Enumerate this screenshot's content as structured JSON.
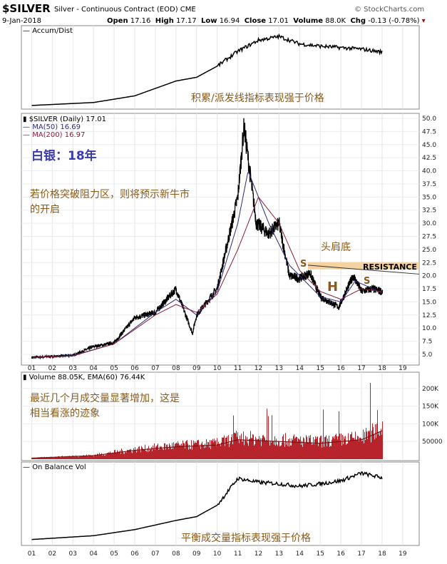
{
  "header": {
    "symbol": "$SILVER",
    "description": "Silver - Continuous Contract (EOD)",
    "exchange": "CME",
    "date": "9-Jan-2018",
    "open_label": "Open",
    "open": "17.16",
    "high_label": "High",
    "high": "17.17",
    "low_label": "Low",
    "low": "16.94",
    "close_label": "Close",
    "close": "17.01",
    "volume_label": "Volume",
    "volume": "88.0K",
    "chg_label": "Chg",
    "chg": "-0.13 (-0.78%)",
    "brand": "© StockCharts.com"
  },
  "panels": {
    "accum": {
      "legend": "Accum/Dist",
      "note": "积累/派发线指标表现强于价格"
    },
    "price": {
      "legend_main": "$SILVER (Daily) 17.01",
      "legend_ma50": "MA(50) 16.69",
      "legend_ma200": "MA(200) 16.97",
      "title_cn": "白银：18年",
      "note_cn_1": "若价格突破阻力区，则将预示新牛市",
      "note_cn_2": "的开启",
      "hs_cn": "头肩底",
      "resistance": "RESISTANCE",
      "s_left": "S",
      "h_mid": "H",
      "s_right": "S"
    },
    "volume": {
      "legend": "Volume 88.05K, EMA(60) 76.44K",
      "note_cn_1": "最近几个月成交量显著增加，这是",
      "note_cn_2": "相当看涨的迹象"
    },
    "obv": {
      "legend": "On Balance Vol",
      "note": "平衡成交量指标表现强于价格"
    }
  },
  "colors": {
    "price": "#000000",
    "ma50": "#2b2b7a",
    "ma200": "#8a1a3a",
    "volume": "#b8242c",
    "resistance": "#f5d3a0"
  },
  "chart_data": {
    "type": "line",
    "x": [
      "01",
      "02",
      "03",
      "04",
      "05",
      "06",
      "07",
      "08",
      "09",
      "10",
      "11",
      "12",
      "13",
      "14",
      "15",
      "16",
      "17",
      "18",
      "19"
    ],
    "price_yticks": [
      5.0,
      7.5,
      10.0,
      12.5,
      15.0,
      17.5,
      20.0,
      22.5,
      25.0,
      27.5,
      30.0,
      32.5,
      35.0,
      37.5,
      40.0,
      42.5,
      45.0,
      47.5,
      50.0
    ],
    "price_ylim": [
      3.5,
      50.0
    ],
    "volume_yticks": [
      "50000",
      "100K",
      "150K",
      "200K"
    ],
    "volume_ylim": [
      0,
      230000
    ],
    "series": [
      {
        "name": "$SILVER (Daily)",
        "points": [
          [
            2001,
            4.4
          ],
          [
            2002,
            4.6
          ],
          [
            2003,
            4.8
          ],
          [
            2004,
            6.5
          ],
          [
            2005,
            7.2
          ],
          [
            2006,
            12.0
          ],
          [
            2007,
            13.0
          ],
          [
            2008,
            17.5
          ],
          [
            2008.8,
            9.0
          ],
          [
            2009,
            12.5
          ],
          [
            2010,
            17.5
          ],
          [
            2011,
            35.0
          ],
          [
            2011.3,
            48.5
          ],
          [
            2011.9,
            30.0
          ],
          [
            2012.5,
            28.0
          ],
          [
            2013,
            30.0
          ],
          [
            2013.5,
            20.0
          ],
          [
            2014,
            19.5
          ],
          [
            2014.5,
            20.5
          ],
          [
            2015,
            16.0
          ],
          [
            2015.9,
            14.0
          ],
          [
            2016.6,
            20.0
          ],
          [
            2017,
            17.0
          ],
          [
            2017.5,
            17.5
          ],
          [
            2018,
            17.01
          ]
        ]
      },
      {
        "name": "MA(50)",
        "points": [
          [
            2001,
            4.4
          ],
          [
            2003,
            4.8
          ],
          [
            2005,
            7.0
          ],
          [
            2007,
            13.0
          ],
          [
            2008,
            15.5
          ],
          [
            2009,
            12.5
          ],
          [
            2010,
            17.0
          ],
          [
            2011,
            30.0
          ],
          [
            2011.5,
            40.0
          ],
          [
            2012.5,
            30.0
          ],
          [
            2013.5,
            22.0
          ],
          [
            2015,
            16.0
          ],
          [
            2016,
            15.0
          ],
          [
            2016.7,
            19.0
          ],
          [
            2018,
            16.69
          ]
        ]
      },
      {
        "name": "MA(200)",
        "points": [
          [
            2001,
            4.4
          ],
          [
            2003,
            4.7
          ],
          [
            2005,
            7.0
          ],
          [
            2007,
            12.5
          ],
          [
            2008,
            14.5
          ],
          [
            2009,
            13.0
          ],
          [
            2010,
            16.5
          ],
          [
            2011,
            25.0
          ],
          [
            2012,
            35.0
          ],
          [
            2013,
            30.0
          ],
          [
            2014,
            21.0
          ],
          [
            2015,
            17.0
          ],
          [
            2016,
            15.5
          ],
          [
            2017,
            17.5
          ],
          [
            2018,
            16.97
          ]
        ]
      }
    ]
  }
}
